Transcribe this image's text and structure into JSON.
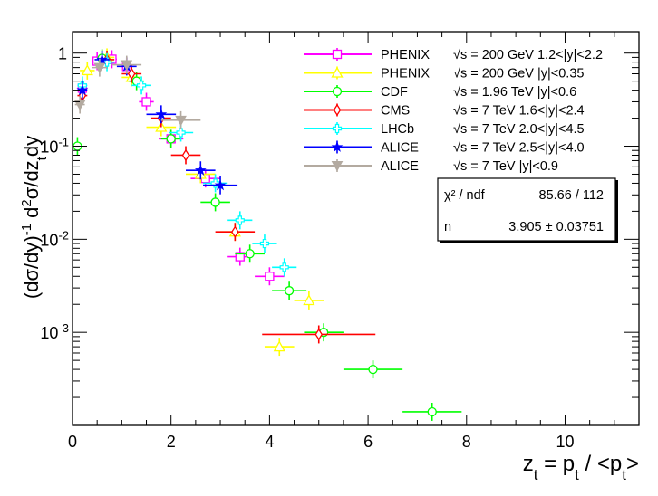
{
  "chart_data": {
    "type": "scatter",
    "xlabel": "z_t = p_t / <p_t>",
    "ylabel": "(dσ/dy)^-1 d²σ/dz_t dy",
    "xlim": [
      0,
      11.5
    ],
    "ylim": [
      0.0001,
      1.7
    ],
    "y_scale": "log",
    "x_ticks": [
      "0",
      "2",
      "4",
      "6",
      "8",
      "10"
    ],
    "y_ticks": [
      "1",
      "10^-1",
      "10^-2",
      "10^-3"
    ],
    "legend_position": "top-right",
    "series": [
      {
        "name": "PHENIX",
        "label": "√s = 200 GeV 1.2<|y|<2.2",
        "color": "#ff00ff",
        "marker": "square-open",
        "x": [
          0.2,
          0.5,
          0.8,
          1.1,
          1.5,
          2.0,
          2.7,
          3.4,
          4.0
        ],
        "y": [
          0.42,
          0.82,
          0.86,
          0.72,
          0.3,
          0.12,
          0.045,
          0.0065,
          0.004
        ],
        "xerr": [
          0.1,
          0.1,
          0.1,
          0.12,
          0.15,
          0.25,
          0.3,
          0.25,
          0.3
        ]
      },
      {
        "name": "PHENIX",
        "label": "√s = 200 GeV |y|<0.35",
        "color": "#ffff00",
        "marker": "triangle-open",
        "x": [
          0.3,
          0.7,
          1.2,
          1.8,
          2.6,
          3.3,
          4.2,
          4.8
        ],
        "y": [
          0.65,
          0.9,
          0.55,
          0.16,
          0.05,
          0.012,
          0.0007,
          0.0022
        ],
        "xerr": [
          0.15,
          0.15,
          0.2,
          0.3,
          0.3,
          0.3,
          0.3,
          0.3
        ]
      },
      {
        "name": "CDF",
        "label": "√s = 1.96 TeV |y|<0.6",
        "color": "#00ff00",
        "marker": "circle-open",
        "x": [
          0.1,
          0.6,
          1.3,
          2.0,
          2.9,
          3.6,
          4.4,
          5.1,
          6.1,
          7.3
        ],
        "y": [
          0.1,
          0.88,
          0.5,
          0.12,
          0.025,
          0.007,
          0.0028,
          0.001,
          0.0004,
          0.00014
        ],
        "xerr": [
          0.05,
          0.1,
          0.15,
          0.2,
          0.3,
          0.3,
          0.35,
          0.4,
          0.6,
          0.6
        ]
      },
      {
        "name": "CMS",
        "label": "√s = 7 TeV 1.6<|y|<2.4",
        "color": "#ff0000",
        "marker": "diamond-open",
        "x": [
          0.2,
          0.7,
          1.2,
          1.8,
          2.3,
          3.3,
          5.0
        ],
        "y": [
          0.35,
          0.85,
          0.6,
          0.2,
          0.08,
          0.012,
          0.00095
        ],
        "xerr": [
          0.1,
          0.15,
          0.2,
          0.2,
          0.3,
          0.4,
          1.15
        ]
      },
      {
        "name": "LHCb",
        "label": "√s = 7 TeV 2.0<|y|<4.5",
        "color": "#00ffff",
        "marker": "cross-open",
        "x": [
          0.2,
          0.7,
          1.4,
          2.2,
          2.9,
          3.4,
          3.9,
          4.3
        ],
        "y": [
          0.45,
          0.8,
          0.45,
          0.14,
          0.04,
          0.016,
          0.009,
          0.005
        ],
        "xerr": [
          0.1,
          0.15,
          0.2,
          0.25,
          0.25,
          0.25,
          0.25,
          0.25
        ]
      },
      {
        "name": "ALICE",
        "label": "√s = 7 TeV 2.5<|y|<4.0",
        "color": "#0000ff",
        "marker": "star",
        "x": [
          0.2,
          0.6,
          1.1,
          1.8,
          2.6,
          3.0
        ],
        "y": [
          0.4,
          0.85,
          0.72,
          0.22,
          0.055,
          0.038
        ],
        "xerr": [
          0.1,
          0.15,
          0.2,
          0.3,
          0.3,
          0.35
        ]
      },
      {
        "name": "ALICE",
        "label": "√s = 7 TeV |y|<0.9",
        "color": "#b3aaa0",
        "marker": "triangle-down",
        "x": [
          0.15,
          0.55,
          1.1,
          2.2
        ],
        "y": [
          0.28,
          0.7,
          0.75,
          0.19
        ],
        "xerr": [
          0.1,
          0.15,
          0.3,
          0.4
        ]
      }
    ],
    "fit": {
      "color": "#000000",
      "form": "A * z^(n-1) * exp(-n z)",
      "n": 3.905,
      "x_range": [
        0,
        7.5
      ]
    },
    "stats_box": {
      "chi2_label": "χ² / ndf",
      "chi2_value": "85.66 / 112",
      "n_label": "n",
      "n_value": "3.905 ± 0.03751"
    }
  }
}
